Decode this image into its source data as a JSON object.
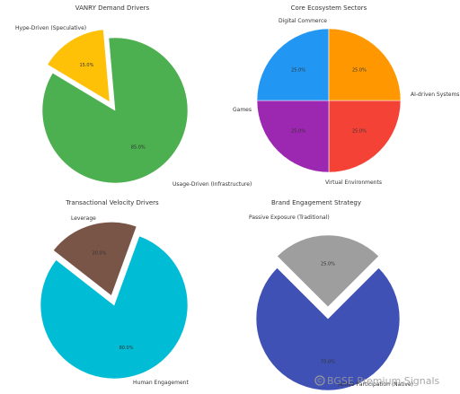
{
  "chart_data": [
    {
      "type": "pie",
      "title": "VANRY Demand Drivers",
      "colors": [
        "#4caf50",
        "#ffc107"
      ],
      "categories": [
        "Usage-Driven (Infrastructure)",
        "Hype-Driven (Speculative)"
      ],
      "values": [
        85.0,
        15.0
      ],
      "value_labels": [
        "85.0%",
        "15.0%"
      ],
      "exploded": [
        "Hype-Driven (Speculative)"
      ]
    },
    {
      "type": "pie",
      "title": "Core Ecosystem Sectors",
      "colors": [
        "#f44336",
        "#9c27b0",
        "#2196f3",
        "#ff9800"
      ],
      "categories": [
        "AI-driven Systems",
        "Virtual Environments",
        "Games",
        "Digital Commerce"
      ],
      "values": [
        25.0,
        25.0,
        25.0,
        25.0
      ],
      "value_labels": [
        "25.0%",
        "25.0%",
        "25.0%",
        "25.0%"
      ],
      "exploded": []
    },
    {
      "type": "pie",
      "title": "Transactional Velocity Drivers",
      "colors": [
        "#00bcd4",
        "#795548"
      ],
      "categories": [
        "Human Engagement",
        "Leverage"
      ],
      "values": [
        80.0,
        20.0
      ],
      "value_labels": [
        "80.0%",
        "20.0%"
      ],
      "exploded": [
        "Leverage"
      ]
    },
    {
      "type": "pie",
      "title": "Brand Engagement Strategy",
      "colors": [
        "#3f51b5",
        "#9e9e9e"
      ],
      "categories": [
        "Active Participation (Native)",
        "Passive Exposure (Traditional)"
      ],
      "values": [
        75.0,
        25.0
      ],
      "value_labels": [
        "75.0%",
        "25.0%"
      ],
      "exploded": [
        "Passive Exposure (Traditional)"
      ]
    }
  ],
  "watermark": {
    "text": "BGSE Premium Signals",
    "icon": "copyright-icon"
  }
}
